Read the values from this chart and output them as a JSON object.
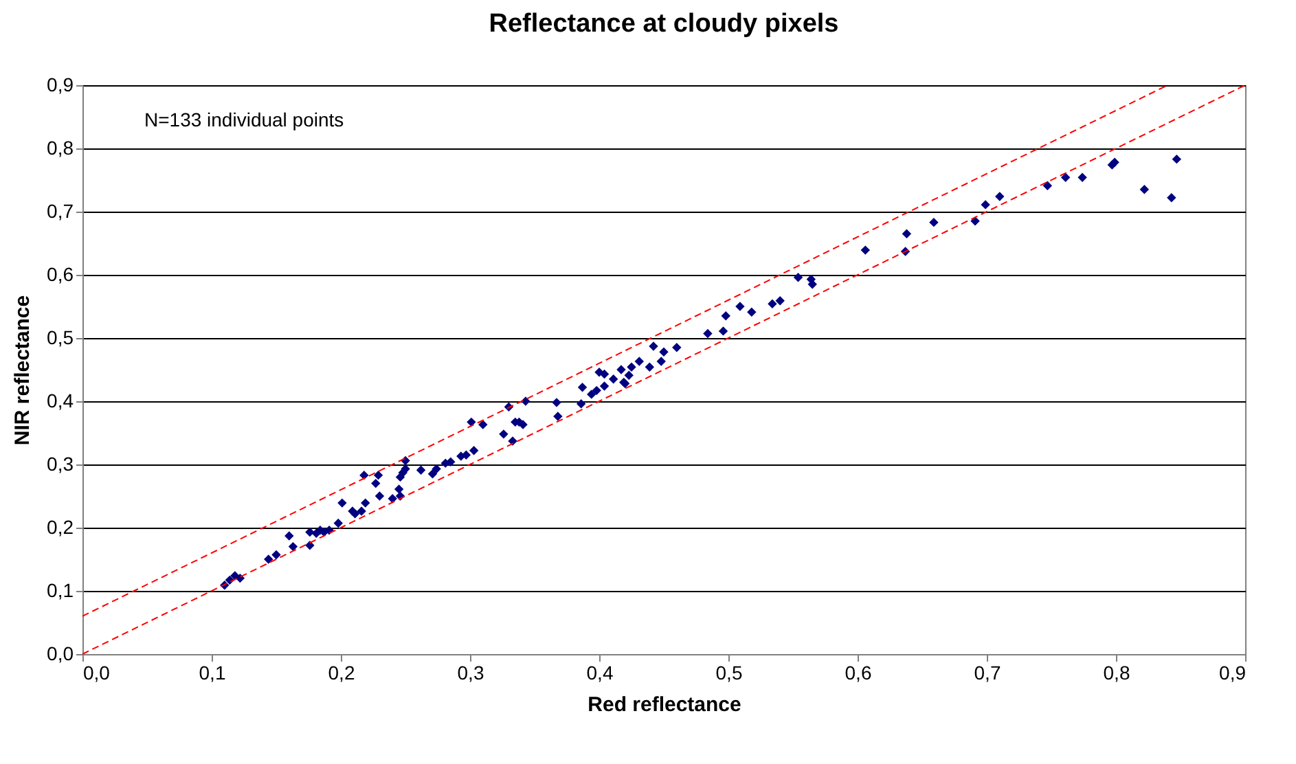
{
  "chart_data": {
    "type": "scatter",
    "title": "Reflectance at cloudy pixels",
    "xlabel": "Red reflectance",
    "ylabel": "NIR reflectance",
    "annotations": [
      "N=133 individual points"
    ],
    "xlim": [
      0,
      0.9
    ],
    "ylim": [
      0,
      0.9
    ],
    "xticks": [
      {
        "value": 0,
        "label": "0,0"
      },
      {
        "value": 0.1,
        "label": "0,1"
      },
      {
        "value": 0.2,
        "label": "0,2"
      },
      {
        "value": 0.3,
        "label": "0,3"
      },
      {
        "value": 0.4,
        "label": "0,4"
      },
      {
        "value": 0.5,
        "label": "0,5"
      },
      {
        "value": 0.6,
        "label": "0,6"
      },
      {
        "value": 0.7,
        "label": "0,7"
      },
      {
        "value": 0.8,
        "label": "0,8"
      },
      {
        "value": 0.9,
        "label": "0,9"
      }
    ],
    "yticks": [
      {
        "value": 0,
        "label": "0,0"
      },
      {
        "value": 0.1,
        "label": "0,1"
      },
      {
        "value": 0.2,
        "label": "0,2"
      },
      {
        "value": 0.3,
        "label": "0,3"
      },
      {
        "value": 0.4,
        "label": "0,4"
      },
      {
        "value": 0.5,
        "label": "0,5"
      },
      {
        "value": 0.6,
        "label": "0,6"
      },
      {
        "value": 0.7,
        "label": "0,7"
      },
      {
        "value": 0.8,
        "label": "0,8"
      },
      {
        "value": 0.9,
        "label": "0,9"
      }
    ],
    "grid": "y",
    "series": [
      {
        "color": "#000080",
        "marker": "diamond",
        "x": [
          0.847,
          0.843,
          0.822,
          0.799,
          0.797,
          0.774,
          0.761,
          0.747,
          0.71,
          0.699,
          0.691,
          0.659,
          0.638,
          0.637,
          0.606,
          0.565,
          0.564,
          0.554,
          0.54,
          0.534,
          0.518,
          0.509,
          0.498,
          0.496,
          0.484,
          0.46,
          0.45,
          0.442,
          0.448,
          0.439,
          0.431,
          0.425,
          0.423,
          0.419,
          0.417,
          0.42,
          0.411,
          0.404,
          0.4,
          0.404,
          0.398,
          0.394,
          0.387,
          0.386,
          0.367,
          0.368,
          0.343,
          0.33,
          0.341,
          0.338,
          0.335,
          0.326,
          0.333,
          0.31,
          0.301,
          0.303,
          0.297,
          0.293,
          0.285,
          0.281,
          0.274,
          0.271,
          0.262,
          0.25,
          0.25,
          0.248,
          0.246,
          0.229,
          0.245,
          0.246,
          0.24,
          0.227,
          0.23,
          0.218,
          0.219,
          0.216,
          0.211,
          0.209,
          0.201,
          0.198,
          0.191,
          0.187,
          0.184,
          0.181,
          0.176,
          0.176,
          0.163,
          0.16,
          0.15,
          0.144,
          0.122,
          0.118,
          0.114,
          0.11
        ],
        "values": [
          0.783,
          0.722,
          0.735,
          0.778,
          0.774,
          0.754,
          0.754,
          0.741,
          0.724,
          0.711,
          0.685,
          0.683,
          0.665,
          0.637,
          0.639,
          0.585,
          0.593,
          0.596,
          0.559,
          0.554,
          0.541,
          0.55,
          0.535,
          0.511,
          0.507,
          0.485,
          0.478,
          0.487,
          0.463,
          0.454,
          0.463,
          0.454,
          0.441,
          0.43,
          0.45,
          0.428,
          0.435,
          0.443,
          0.446,
          0.424,
          0.417,
          0.411,
          0.422,
          0.396,
          0.398,
          0.376,
          0.4,
          0.391,
          0.363,
          0.367,
          0.367,
          0.348,
          0.337,
          0.363,
          0.367,
          0.322,
          0.315,
          0.313,
          0.304,
          0.302,
          0.293,
          0.285,
          0.291,
          0.306,
          0.293,
          0.287,
          0.28,
          0.283,
          0.261,
          0.25,
          0.246,
          0.27,
          0.25,
          0.283,
          0.239,
          0.226,
          0.222,
          0.226,
          0.239,
          0.207,
          0.196,
          0.193,
          0.196,
          0.191,
          0.193,
          0.172,
          0.17,
          0.187,
          0.157,
          0.15,
          0.12,
          0.124,
          0.117,
          0.109
        ]
      },
      {
        "type": "line",
        "color": "#ff0000",
        "line_style": "dashed",
        "marker": "none",
        "x": [
          0,
          0.9
        ],
        "values": [
          0,
          0.9
        ]
      },
      {
        "type": "line",
        "color": "#ff0000",
        "line_style": "dashed",
        "marker": "none",
        "x": [
          0,
          0.84
        ],
        "values": [
          0.06,
          0.9
        ]
      }
    ]
  }
}
